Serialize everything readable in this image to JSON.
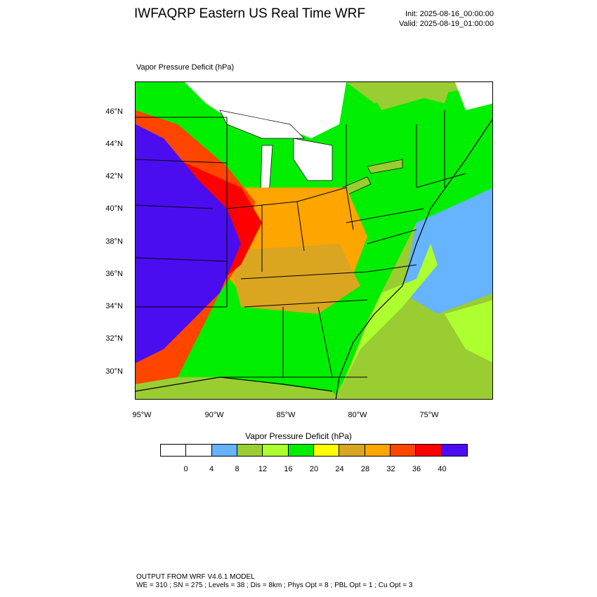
{
  "header": {
    "title": "IWFAQRP Eastern US Real Time WRF",
    "init": "Init: 2025-08-16_00:00:00",
    "valid": "Valid: 2025-08-19_01:00:00"
  },
  "map": {
    "field_label": "Vapor Pressure Deficit   (hPa)",
    "lat_labels": [
      "46°N",
      "44°N",
      "42°N",
      "40°N",
      "38°N",
      "36°N",
      "34°N",
      "32°N",
      "30°N"
    ],
    "lon_labels": [
      "95°W",
      "90°W",
      "85°W",
      "80°W",
      "75°W"
    ]
  },
  "colorbar": {
    "title": "Vapor Pressure Deficit  (hPa)",
    "colors": [
      "#ffffff",
      "#ffffff",
      "#66b3ff",
      "#9acd32",
      "#adff2f",
      "#00ee00",
      "#ffff00",
      "#daa520",
      "#ffa500",
      "#ff4500",
      "#ff0000",
      "#4b0df0"
    ],
    "ticks": [
      "0",
      "4",
      "8",
      "12",
      "16",
      "20",
      "24",
      "28",
      "32",
      "36",
      "40"
    ]
  },
  "footer": {
    "line1": "OUTPUT FROM WRF V4.6.1 MODEL",
    "line2": "WE = 310 ; SN = 275 ; Levels = 38 ; Dis = 8km ; Phys Opt = 8 ; PBL Opt = 1 ; Cu Opt = 3"
  }
}
